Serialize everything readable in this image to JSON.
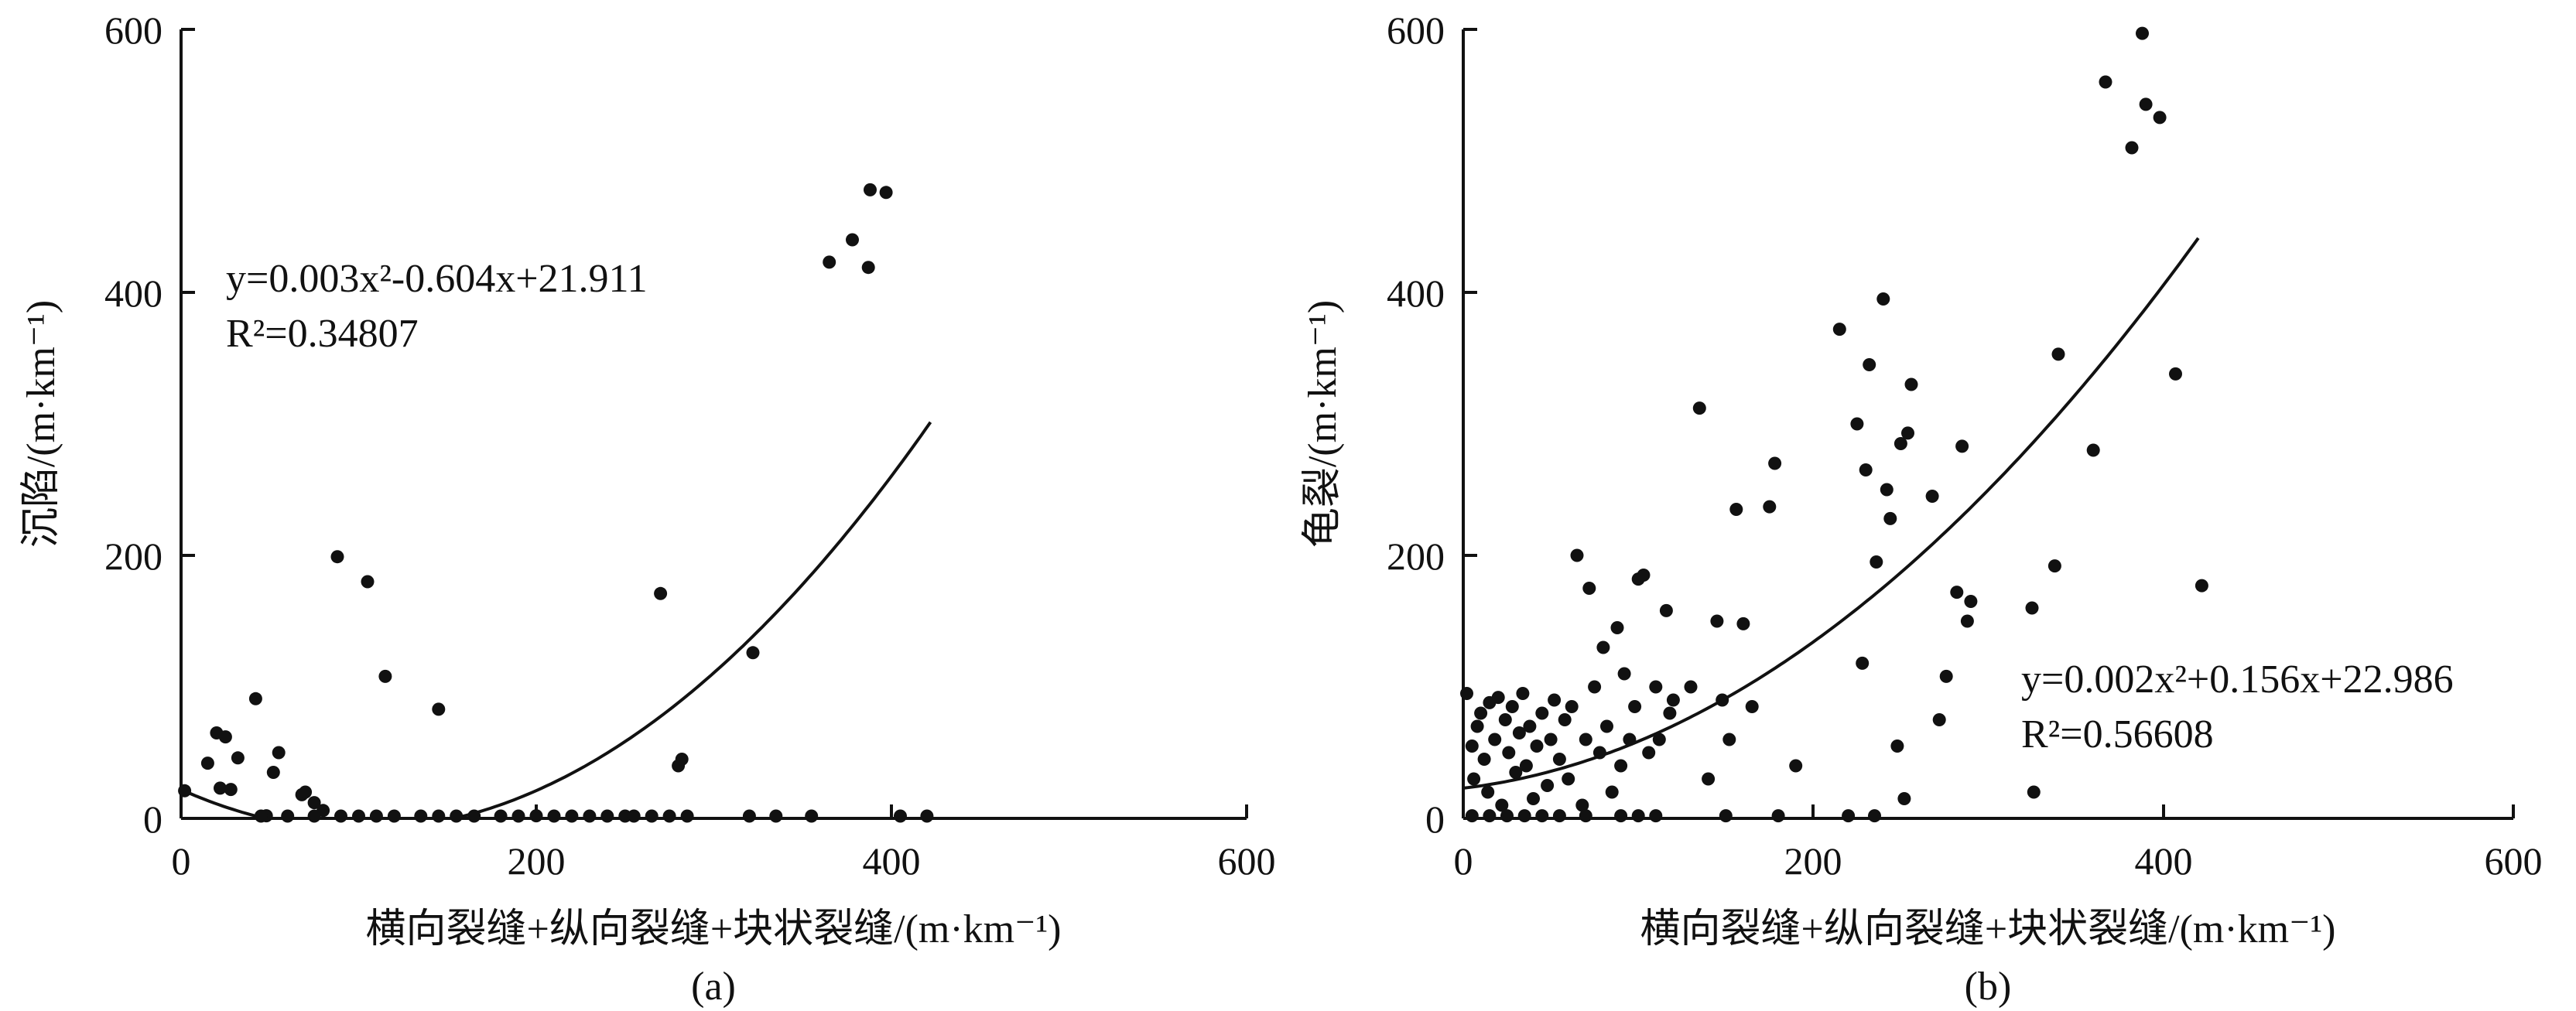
{
  "chart_data": [
    {
      "type": "scatter",
      "panel_label": "(a)",
      "xlabel": "横向裂缝+纵向裂缝+块状裂缝/(m·km⁻¹)",
      "ylabel": "沉陷/(m·km⁻¹)",
      "xlim": [
        0,
        600
      ],
      "ylim": [
        0,
        600
      ],
      "xticks": [
        "0",
        "200",
        "400",
        "600"
      ],
      "yticks": [
        "0",
        "200",
        "400",
        "600"
      ],
      "equation": "y=0.003x²-0.604x+21.911",
      "r_squared": "R²=0.34807",
      "fit": {
        "a": 0.003,
        "b": -0.604,
        "c": 21.911,
        "x_range": [
          0,
          422
        ]
      },
      "points": [
        [
          2,
          21
        ],
        [
          15,
          42
        ],
        [
          20,
          65
        ],
        [
          22,
          23
        ],
        [
          25,
          62
        ],
        [
          28,
          22
        ],
        [
          32,
          46
        ],
        [
          42,
          91
        ],
        [
          48,
          2
        ],
        [
          52,
          35
        ],
        [
          55,
          50
        ],
        [
          68,
          18
        ],
        [
          70,
          20
        ],
        [
          75,
          12
        ],
        [
          80,
          6
        ],
        [
          88,
          199
        ],
        [
          105,
          180
        ],
        [
          115,
          108
        ],
        [
          145,
          83
        ],
        [
          270,
          171
        ],
        [
          280,
          40
        ],
        [
          282,
          45
        ],
        [
          322,
          126
        ],
        [
          365,
          423
        ],
        [
          378,
          440
        ],
        [
          387,
          419
        ],
        [
          388,
          478
        ],
        [
          397,
          476
        ],
        [
          45,
          1
        ],
        [
          60,
          1
        ],
        [
          75,
          1
        ],
        [
          90,
          1
        ],
        [
          100,
          1
        ],
        [
          110,
          1
        ],
        [
          120,
          1
        ],
        [
          135,
          1
        ],
        [
          145,
          1
        ],
        [
          155,
          1
        ],
        [
          165,
          1
        ],
        [
          180,
          1
        ],
        [
          190,
          1
        ],
        [
          200,
          2
        ],
        [
          210,
          1
        ],
        [
          220,
          1
        ],
        [
          230,
          1
        ],
        [
          240,
          1
        ],
        [
          250,
          1
        ],
        [
          255,
          1
        ],
        [
          265,
          1
        ],
        [
          275,
          1
        ],
        [
          285,
          1
        ],
        [
          320,
          1
        ],
        [
          335,
          1
        ],
        [
          355,
          1
        ],
        [
          405,
          1
        ],
        [
          420,
          1
        ]
      ]
    },
    {
      "type": "scatter",
      "panel_label": "(b)",
      "xlabel": "横向裂缝+纵向裂缝+块状裂缝/(m·km⁻¹)",
      "ylabel": "龟裂/(m·km⁻¹)",
      "xlim": [
        0,
        600
      ],
      "ylim": [
        0,
        600
      ],
      "xticks": [
        "0",
        "200",
        "400",
        "600"
      ],
      "yticks": [
        "0",
        "200",
        "400",
        "600"
      ],
      "equation": "y=0.002x²+0.156x+22.986",
      "r_squared": "R²=0.56608",
      "fit": {
        "a": 0.002,
        "b": 0.156,
        "c": 22.986,
        "x_range": [
          0,
          420
        ]
      },
      "points": [
        [
          2,
          95
        ],
        [
          5,
          55
        ],
        [
          6,
          30
        ],
        [
          8,
          70
        ],
        [
          10,
          80
        ],
        [
          12,
          45
        ],
        [
          14,
          20
        ],
        [
          15,
          88
        ],
        [
          18,
          60
        ],
        [
          20,
          92
        ],
        [
          22,
          10
        ],
        [
          24,
          75
        ],
        [
          26,
          50
        ],
        [
          28,
          85
        ],
        [
          30,
          35
        ],
        [
          32,
          65
        ],
        [
          34,
          95
        ],
        [
          36,
          40
        ],
        [
          38,
          70
        ],
        [
          40,
          15
        ],
        [
          42,
          55
        ],
        [
          45,
          80
        ],
        [
          48,
          25
        ],
        [
          50,
          60
        ],
        [
          52,
          90
        ],
        [
          55,
          45
        ],
        [
          58,
          75
        ],
        [
          60,
          30
        ],
        [
          62,
          85
        ],
        [
          65,
          200
        ],
        [
          68,
          10
        ],
        [
          70,
          60
        ],
        [
          72,
          175
        ],
        [
          75,
          100
        ],
        [
          78,
          50
        ],
        [
          80,
          130
        ],
        [
          82,
          70
        ],
        [
          85,
          20
        ],
        [
          88,
          145
        ],
        [
          90,
          40
        ],
        [
          92,
          110
        ],
        [
          95,
          60
        ],
        [
          98,
          85
        ],
        [
          100,
          182
        ],
        [
          103,
          185
        ],
        [
          106,
          50
        ],
        [
          110,
          100
        ],
        [
          112,
          60
        ],
        [
          116,
          158
        ],
        [
          118,
          80
        ],
        [
          120,
          90
        ],
        [
          130,
          100
        ],
        [
          135,
          312
        ],
        [
          140,
          30
        ],
        [
          145,
          150
        ],
        [
          148,
          90
        ],
        [
          152,
          60
        ],
        [
          156,
          235
        ],
        [
          160,
          148
        ],
        [
          165,
          85
        ],
        [
          175,
          237
        ],
        [
          178,
          270
        ],
        [
          190,
          40
        ],
        [
          215,
          372
        ],
        [
          225,
          300
        ],
        [
          228,
          118
        ],
        [
          230,
          265
        ],
        [
          232,
          345
        ],
        [
          236,
          195
        ],
        [
          240,
          395
        ],
        [
          242,
          250
        ],
        [
          244,
          228
        ],
        [
          248,
          55
        ],
        [
          250,
          285
        ],
        [
          252,
          15
        ],
        [
          254,
          293
        ],
        [
          256,
          330
        ],
        [
          268,
          245
        ],
        [
          272,
          75
        ],
        [
          276,
          108
        ],
        [
          282,
          172
        ],
        [
          285,
          283
        ],
        [
          288,
          150
        ],
        [
          290,
          165
        ],
        [
          325,
          160
        ],
        [
          326,
          20
        ],
        [
          338,
          192
        ],
        [
          340,
          353
        ],
        [
          360,
          280
        ],
        [
          367,
          560
        ],
        [
          382,
          510
        ],
        [
          388,
          597
        ],
        [
          390,
          543
        ],
        [
          398,
          533
        ],
        [
          407,
          338
        ],
        [
          422,
          177
        ],
        [
          5,
          2
        ],
        [
          15,
          2
        ],
        [
          25,
          2
        ],
        [
          35,
          2
        ],
        [
          45,
          2
        ],
        [
          55,
          2
        ],
        [
          70,
          2
        ],
        [
          90,
          2
        ],
        [
          100,
          2
        ],
        [
          110,
          2
        ],
        [
          150,
          2
        ],
        [
          180,
          2
        ],
        [
          220,
          2
        ],
        [
          235,
          2
        ]
      ]
    }
  ]
}
